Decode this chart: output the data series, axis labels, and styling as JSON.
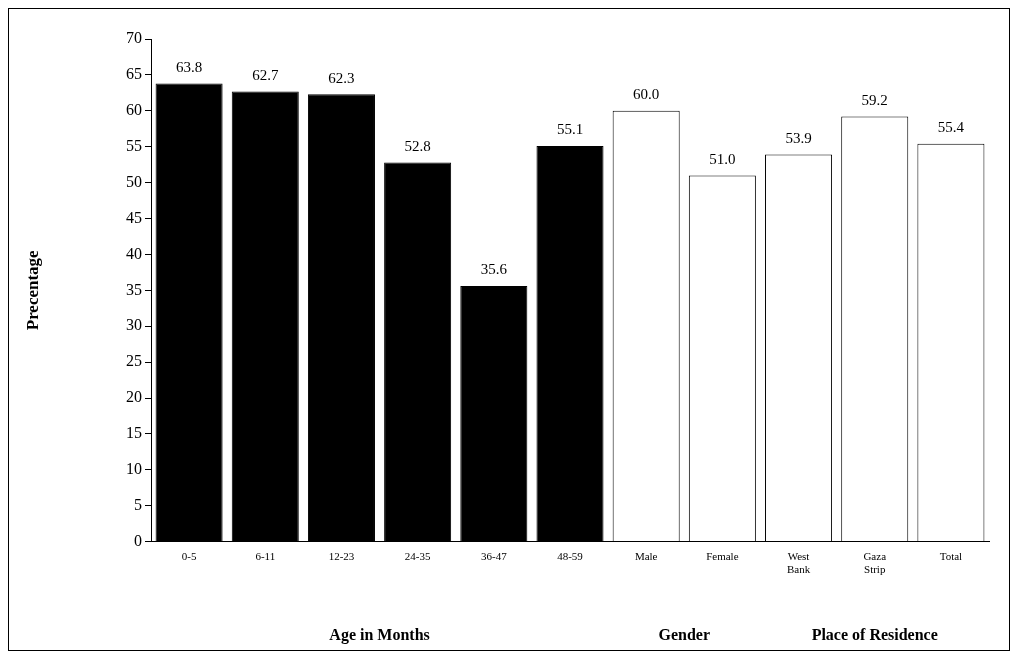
{
  "chart_data": {
    "type": "bar",
    "ylabel": "Precentage",
    "categories": [
      "0-5",
      "6-11",
      "12-23",
      "24-35",
      "36-47",
      "48-59",
      "Male",
      "Female",
      "West Bank",
      "Gaza Strip",
      "Total"
    ],
    "values": [
      63.8,
      62.7,
      62.3,
      52.8,
      35.6,
      55.1,
      60.0,
      51.0,
      53.9,
      59.2,
      55.4
    ],
    "colors": [
      "#000000",
      "#000000",
      "#000000",
      "#000000",
      "#000000",
      "#000000",
      "#ffffff",
      "#ffffff",
      "#ffffff",
      "#ffffff",
      "#ffffff"
    ],
    "value_labels": [
      "63.8",
      "62.7",
      "62.3",
      "52.8",
      "35.6",
      "55.1",
      "60.0",
      "51.0",
      "53.9",
      "59.2",
      "55.4"
    ],
    "ylim": [
      0,
      70
    ],
    "yticks": [
      0,
      5,
      10,
      15,
      20,
      25,
      30,
      35,
      40,
      45,
      50,
      55,
      60,
      65,
      70
    ],
    "grid": false,
    "legend": false,
    "annotations": [
      "Age in Months",
      "Gender",
      "Place of Residence"
    ]
  }
}
